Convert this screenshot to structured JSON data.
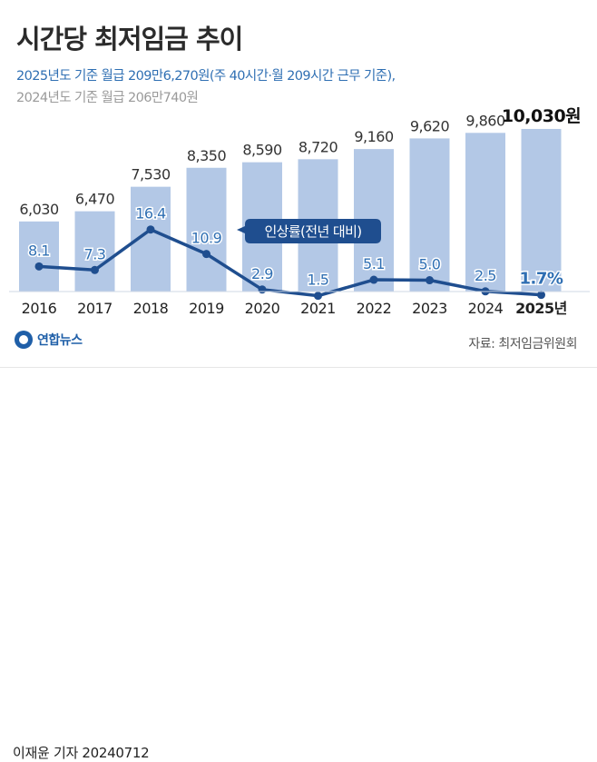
{
  "header": {
    "title": "시간당 최저임금 추이",
    "subtitle_line1": "2025년도 기준 월급 209만6,270원(주 40시간·월 209시간 근무 기준),",
    "subtitle_line2": "2024년도 기준 월급 206만740원"
  },
  "footer": {
    "logo_text": "연합뉴스",
    "source": "자료: 최저임금위원회",
    "byline": "이재윤 기자  20240712"
  },
  "colors": {
    "bar": "#b3c8e6",
    "line": "#1f4e8f",
    "accent": "#2f6fb3",
    "text": "#333333"
  },
  "chart_data": {
    "type": "bar",
    "categories": [
      "2016",
      "2017",
      "2018",
      "2019",
      "2020",
      "2021",
      "2022",
      "2023",
      "2024",
      "2025년"
    ],
    "value_labels": [
      "6,030",
      "6,470",
      "7,530",
      "8,350",
      "8,590",
      "8,720",
      "9,160",
      "9,620",
      "9,860",
      "10,030원"
    ],
    "series": [
      {
        "values": [
          6030,
          6470,
          7530,
          8350,
          8590,
          8720,
          9160,
          9620,
          9860,
          10030
        ]
      },
      {
        "name": "인상률(전년 대비)",
        "type": "line",
        "values": [
          8.1,
          7.3,
          16.4,
          10.9,
          2.9,
          1.5,
          5.1,
          5.0,
          2.5,
          1.7
        ]
      }
    ],
    "rate_labels": [
      "8.1",
      "7.3",
      "16.4",
      "10.9",
      "2.9",
      "1.5",
      "5.1",
      "5.0",
      "2.5",
      "1.7%"
    ],
    "line_callout": "인상률(전년 대비)",
    "ylim": [
      3000,
      10500
    ],
    "rate_ylim": [
      0,
      19
    ],
    "legend": "none"
  }
}
